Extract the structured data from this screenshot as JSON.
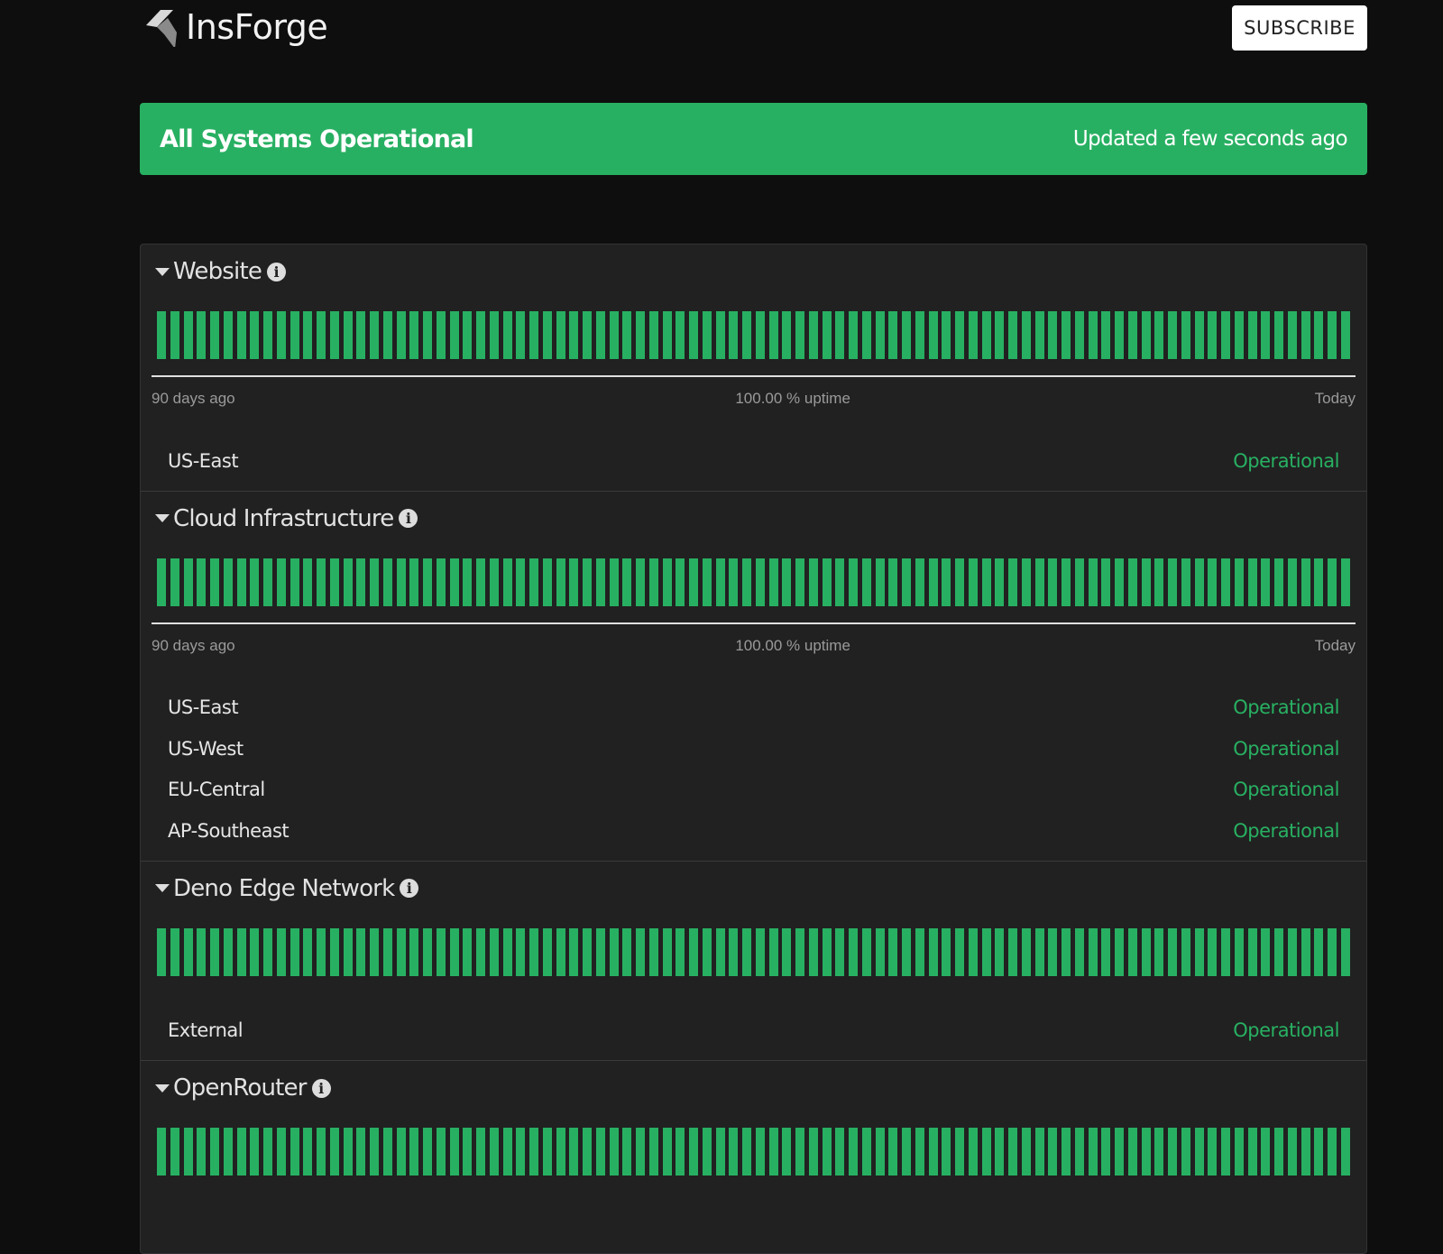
{
  "header": {
    "brand": "InsForge",
    "subscribe_label": "SUBSCRIBE"
  },
  "banner": {
    "title": "All Systems Operational",
    "updated": "Updated a few seconds ago",
    "color": "#28b062"
  },
  "uptime_days": 90,
  "bar_color": "#28b062",
  "groups": [
    {
      "name": "Website",
      "timeline": {
        "start": "90 days ago",
        "uptime": "100.00 % uptime",
        "end": "Today"
      },
      "components": [
        {
          "name": "US-East",
          "status": "Operational"
        }
      ]
    },
    {
      "name": "Cloud Infrastructure",
      "timeline": {
        "start": "90 days ago",
        "uptime": "100.00 % uptime",
        "end": "Today"
      },
      "components": [
        {
          "name": "US-East",
          "status": "Operational"
        },
        {
          "name": "US-West",
          "status": "Operational"
        },
        {
          "name": "EU-Central",
          "status": "Operational"
        },
        {
          "name": "AP-Southeast",
          "status": "Operational"
        }
      ]
    },
    {
      "name": "Deno Edge Network",
      "components": [
        {
          "name": "External",
          "status": "Operational"
        }
      ]
    },
    {
      "name": "OpenRouter",
      "components": []
    }
  ]
}
